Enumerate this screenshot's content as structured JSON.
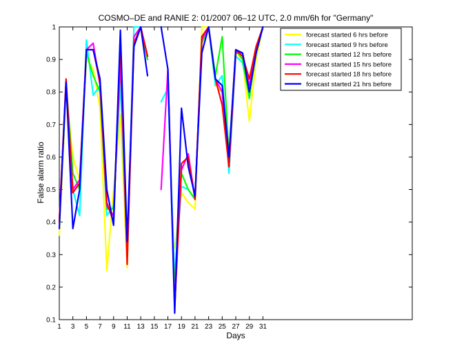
{
  "chart_data": {
    "type": "line",
    "title": "COSMO–DE and RANIE 2: 01/2007 06–12 UTC, 2.0 mm/6h for \"Germany\"",
    "xlabel": "Days",
    "ylabel": "False alarm ratio",
    "xlim": [
      1,
      53
    ],
    "ylim": [
      0.1,
      1
    ],
    "xticks": [
      1,
      3,
      5,
      7,
      9,
      11,
      13,
      15,
      17,
      19,
      21,
      23,
      25,
      27,
      29,
      31
    ],
    "yticks": [
      0.1,
      0.2,
      0.3,
      0.4,
      0.5,
      0.6,
      0.7,
      0.8,
      0.9,
      1
    ],
    "legend_position": "top-right",
    "grid": false,
    "series": [
      {
        "name": "forecast started 6 hrs before",
        "color": "#ffff00",
        "x": [
          1,
          2,
          3,
          4,
          5,
          6,
          7,
          8,
          9,
          10,
          11,
          12,
          13,
          14,
          15,
          16,
          17,
          18,
          19,
          20,
          21,
          22,
          23,
          24,
          25,
          26,
          27,
          28,
          29,
          30,
          31
        ],
        "y": [
          0.36,
          0.8,
          0.6,
          0.53,
          0.9,
          0.87,
          0.75,
          0.25,
          0.5,
          0.73,
          0.26,
          1.0,
          1.0,
          0.9,
          null,
          null,
          null,
          0.32,
          0.49,
          0.46,
          0.44,
          1.0,
          1.0,
          0.82,
          0.8,
          0.6,
          0.92,
          0.9,
          0.71,
          0.9,
          1.0
        ]
      },
      {
        "name": "forecast started 9 hrs before",
        "color": "#00ffff",
        "x": [
          1,
          2,
          3,
          4,
          5,
          6,
          7,
          8,
          9,
          10,
          11,
          12,
          13,
          14,
          15,
          16,
          17,
          18,
          19,
          20,
          21,
          22,
          23,
          24,
          25,
          26,
          27,
          28,
          29,
          30,
          31
        ],
        "y": [
          0.4,
          0.82,
          0.5,
          0.42,
          0.96,
          0.79,
          0.82,
          0.42,
          0.45,
          0.83,
          0.3,
          1.0,
          1.0,
          0.9,
          null,
          0.77,
          0.81,
          0.23,
          0.51,
          0.5,
          0.47,
          0.97,
          1.0,
          0.82,
          0.85,
          0.55,
          0.91,
          0.89,
          0.79,
          0.92,
          1.0
        ]
      },
      {
        "name": "forecast started 12 hrs before",
        "color": "#00ff00",
        "x": [
          1,
          2,
          3,
          4,
          5,
          6,
          7,
          8,
          9,
          10,
          11,
          12,
          13,
          14,
          15,
          16,
          17,
          18,
          19,
          20,
          21,
          22,
          23,
          24,
          25,
          26,
          27,
          28,
          29,
          30,
          31
        ],
        "y": [
          0.4,
          0.83,
          0.55,
          0.5,
          0.92,
          0.85,
          0.8,
          0.44,
          0.44,
          0.9,
          0.3,
          0.97,
          1.0,
          0.9,
          null,
          null,
          null,
          0.22,
          0.55,
          0.5,
          0.47,
          0.95,
          1.0,
          0.85,
          0.97,
          0.6,
          0.93,
          0.9,
          0.78,
          0.93,
          1.0
        ]
      },
      {
        "name": "forecast started 15 hrs before",
        "color": "#ff00ff",
        "x": [
          1,
          2,
          3,
          4,
          5,
          6,
          7,
          8,
          9,
          10,
          11,
          12,
          13,
          14,
          15,
          16,
          17,
          18,
          19,
          20,
          21,
          22,
          23,
          24,
          25,
          26,
          27,
          28,
          29,
          30,
          31
        ],
        "y": [
          0.41,
          0.83,
          0.5,
          0.53,
          0.93,
          0.95,
          0.82,
          0.45,
          0.42,
          0.9,
          0.3,
          0.97,
          1.0,
          0.91,
          null,
          0.5,
          0.87,
          0.14,
          0.56,
          0.61,
          0.47,
          0.96,
          1.0,
          0.84,
          0.8,
          0.57,
          0.92,
          0.92,
          0.82,
          0.93,
          1.0
        ]
      },
      {
        "name": "forecast started 18 hrs before",
        "color": "#ff0000",
        "x": [
          1,
          2,
          3,
          4,
          5,
          6,
          7,
          8,
          9,
          10,
          11,
          12,
          13,
          14,
          15,
          16,
          17,
          18,
          19,
          20,
          21,
          22,
          23,
          24,
          25,
          26,
          27,
          28,
          29,
          30,
          31
        ],
        "y": [
          0.4,
          0.84,
          0.49,
          0.52,
          0.93,
          0.93,
          0.83,
          0.46,
          0.4,
          0.96,
          0.27,
          0.95,
          1.0,
          0.91,
          null,
          null,
          null,
          0.14,
          0.58,
          0.6,
          0.47,
          0.97,
          1.0,
          0.84,
          0.76,
          0.57,
          0.93,
          0.91,
          0.84,
          0.94,
          1.0
        ]
      },
      {
        "name": "forecast started 21 hrs before",
        "color": "#0000ff",
        "x": [
          1,
          2,
          3,
          4,
          5,
          6,
          7,
          8,
          9,
          10,
          11,
          12,
          13,
          14,
          15,
          16,
          17,
          18,
          19,
          20,
          21,
          22,
          23,
          24,
          25,
          26,
          27,
          28,
          29,
          30,
          31
        ],
        "y": [
          0.38,
          0.83,
          0.38,
          0.5,
          0.93,
          0.93,
          0.84,
          0.5,
          0.39,
          0.99,
          0.34,
          0.94,
          1.0,
          0.85,
          null,
          1.0,
          0.87,
          0.12,
          0.75,
          0.57,
          0.48,
          0.92,
          1.0,
          0.84,
          0.82,
          0.6,
          0.93,
          0.92,
          0.8,
          0.92,
          1.0
        ]
      }
    ]
  }
}
